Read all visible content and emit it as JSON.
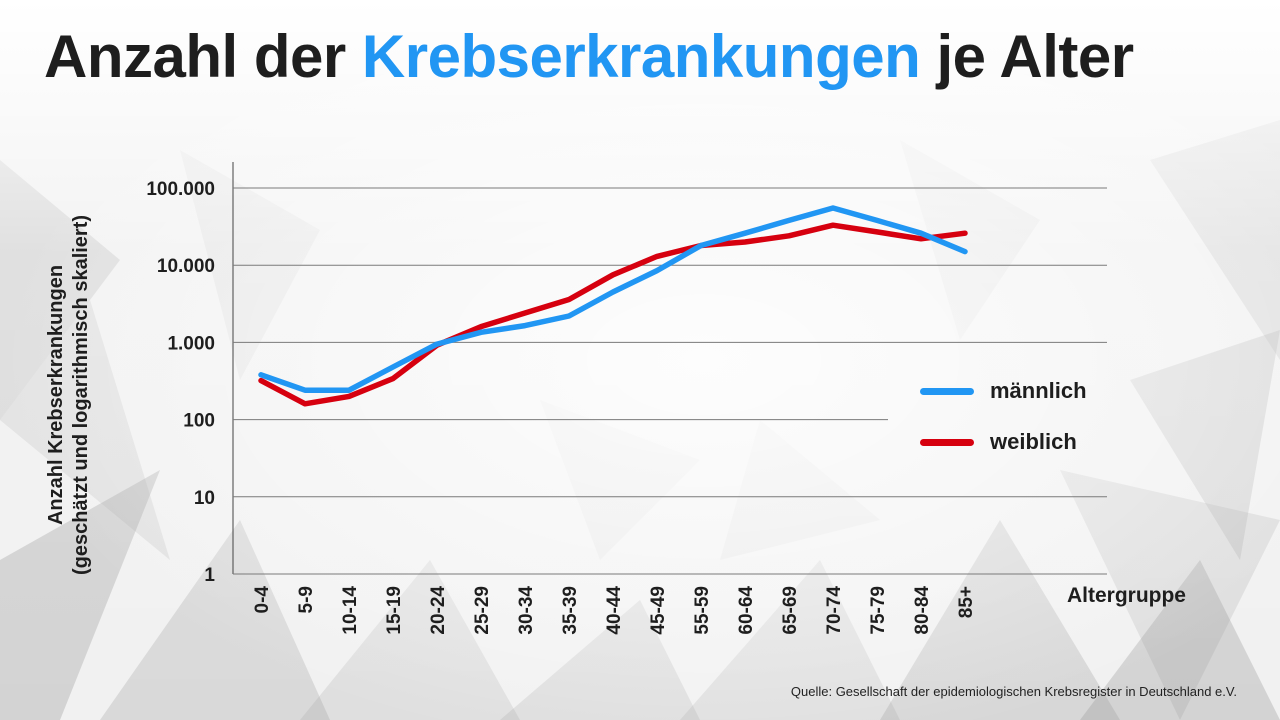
{
  "title": {
    "part1": "Anzahl der",
    "highlight": "Krebserkrankungen",
    "part2": "je Alter"
  },
  "colors": {
    "highlight": "#2196f3",
    "maennlich": "#2196f3",
    "weiblich": "#d6000f",
    "text": "#1e1e1e"
  },
  "source": "Quelle: Gesellschaft der epidemiologischen Krebsregister in Deutschland e.V.",
  "chart_data": {
    "type": "line",
    "yscale": "log",
    "ylabel": "Anzahl Krebserkrankungen",
    "ylabel2": "(geschätzt und logarithmisch skaliert)",
    "xlabel": "Altergruppe",
    "ytick_values": [
      1,
      10,
      100,
      1000,
      10000,
      100000
    ],
    "ytick_labels": [
      "1",
      "10",
      "100",
      "1.000",
      "10.000",
      "100.000"
    ],
    "ylim": [
      1,
      100000
    ],
    "grid": true,
    "legend_position": "right",
    "categories": [
      "0-4",
      "5-9",
      "10-14",
      "15-19",
      "20-24",
      "25-29",
      "30-34",
      "35-39",
      "40-44",
      "45-49",
      "55-59",
      "60-64",
      "65-69",
      "70-74",
      "75-79",
      "80-84",
      "85+"
    ],
    "series": [
      {
        "name": "männlich",
        "color": "#2196f3",
        "values": [
          380,
          240,
          240,
          480,
          950,
          1350,
          1650,
          2200,
          4500,
          8500,
          18000,
          26000,
          38000,
          55000,
          38000,
          26000,
          15000
        ]
      },
      {
        "name": "weiblich",
        "color": "#d6000f",
        "values": [
          320,
          160,
          200,
          340,
          920,
          1600,
          2400,
          3600,
          7500,
          13000,
          18000,
          20000,
          24000,
          33000,
          27000,
          22000,
          26000
        ]
      }
    ]
  }
}
